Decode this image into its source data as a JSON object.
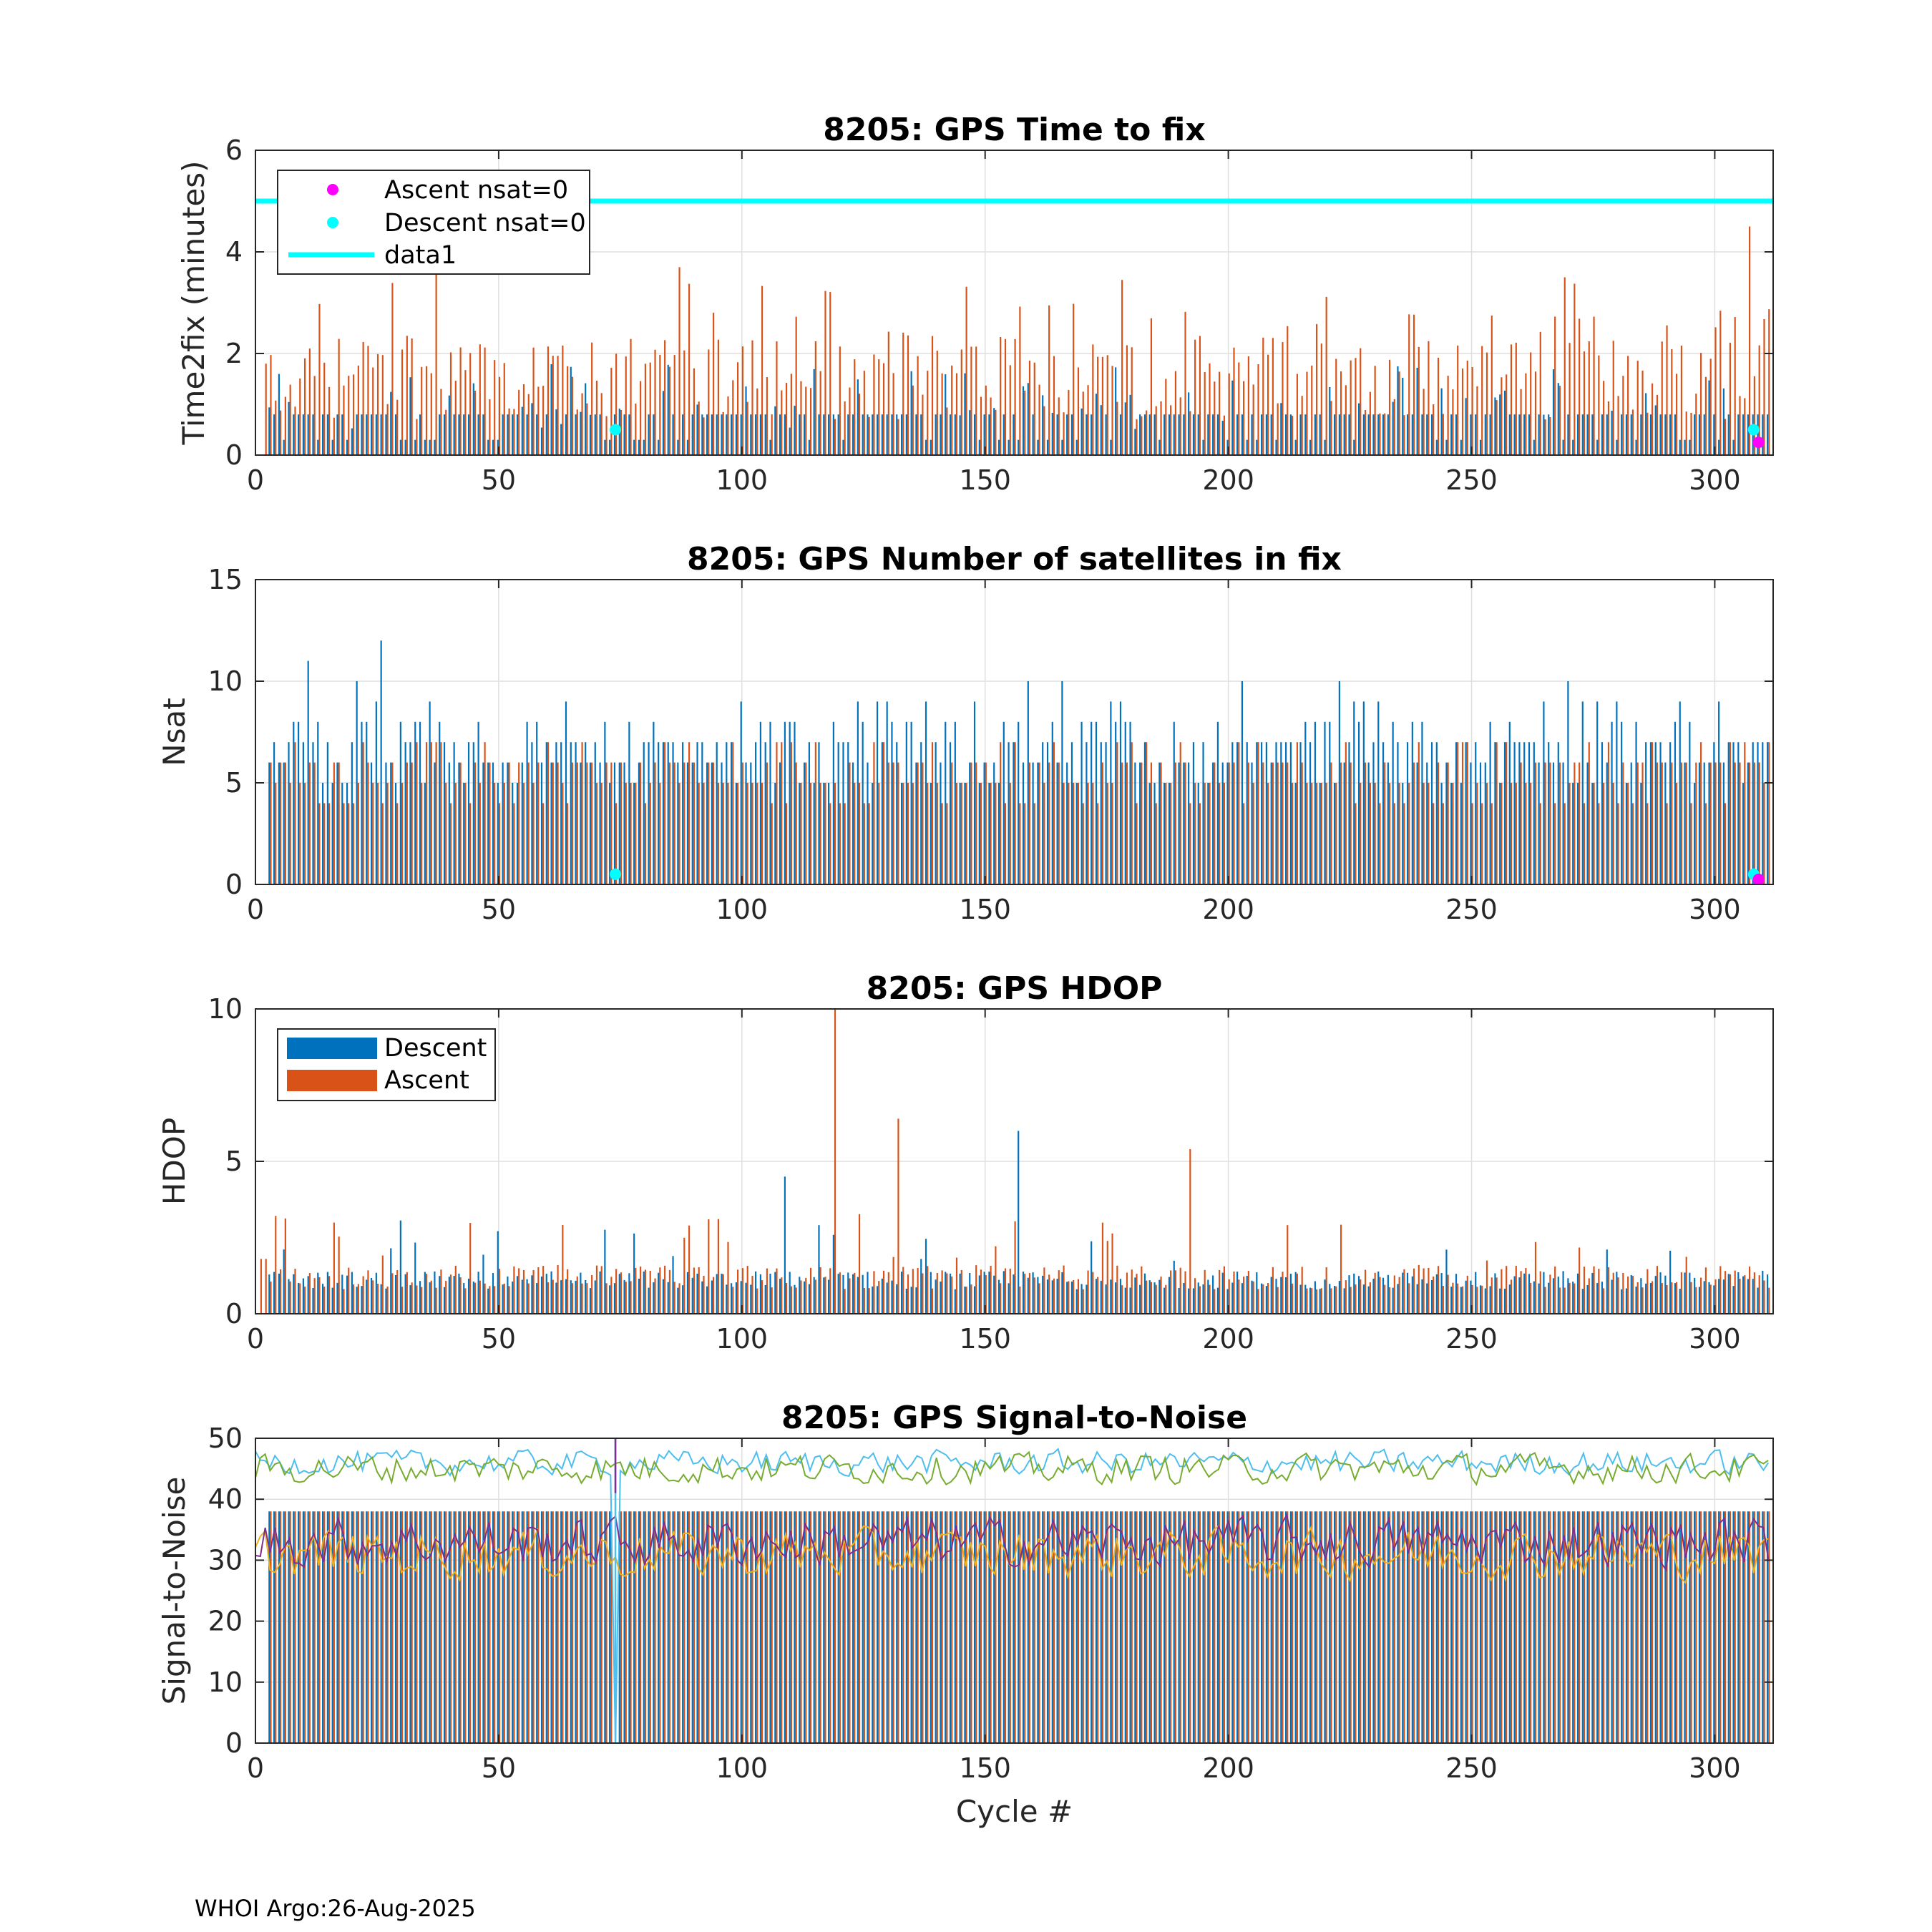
{
  "footer": "WHOI Argo:26-Aug-2025",
  "colors": {
    "descent": "#0072BD",
    "ascent": "#D95319",
    "cyan": "#00FFFF",
    "magenta": "#FF00FF",
    "yellow": "#EDB120",
    "purple": "#7E2F8E",
    "green": "#77AC30",
    "lightblue": "#4DBEEE"
  },
  "chart_data": [
    {
      "type": "bar",
      "title": "8205: GPS Time to fix",
      "xlabel": "",
      "ylabel": "Time2fix (minutes)",
      "xlim": [
        0,
        312
      ],
      "ylim": [
        0,
        6
      ],
      "xticks": [
        0,
        50,
        100,
        150,
        200,
        250,
        300
      ],
      "yticks": [
        0,
        2,
        4,
        6
      ],
      "grid": true,
      "legend": {
        "placement": "top-left",
        "entries": [
          "Ascent nsat=0",
          "Descent nsat=0",
          "data1"
        ]
      },
      "reference_line": {
        "name": "data1",
        "y": 5
      },
      "markers": [
        {
          "series": "Descent nsat=0",
          "x": 74,
          "y": 0.5
        },
        {
          "series": "Descent nsat=0",
          "x": 308,
          "y": 0.5
        },
        {
          "series": "Ascent nsat=0",
          "x": 309,
          "y": 0.25
        }
      ],
      "series": [
        {
          "name": "Descent",
          "typical": 0.8,
          "range": [
            0.3,
            2.8
          ],
          "cycles": 311
        },
        {
          "name": "Ascent",
          "typical": 1.6,
          "range": [
            0.3,
            4.5
          ],
          "cycles": 311,
          "notable": [
            {
              "x": 37,
              "y": 3.6
            },
            {
              "x": 87,
              "y": 3.7
            },
            {
              "x": 269,
              "y": 3.5
            },
            {
              "x": 307,
              "y": 4.5
            }
          ]
        }
      ]
    },
    {
      "type": "bar",
      "title": "8205: GPS Number of satellites in fix",
      "xlabel": "",
      "ylabel": "Nsat",
      "xlim": [
        0,
        312
      ],
      "ylim": [
        0,
        15
      ],
      "xticks": [
        0,
        50,
        100,
        150,
        200,
        250,
        300
      ],
      "yticks": [
        0,
        5,
        10,
        15
      ],
      "grid": true,
      "markers": [
        {
          "series": "Descent nsat=0",
          "x": 74,
          "y": 0.5
        },
        {
          "series": "Descent nsat=0",
          "x": 308,
          "y": 0.5
        },
        {
          "series": "Ascent nsat=0",
          "x": 309,
          "y": 0.25
        }
      ],
      "series": [
        {
          "name": "Descent",
          "typical": 7,
          "range": [
            5,
            12
          ],
          "cycles": 311,
          "notable": [
            {
              "x": 11,
              "y": 11
            },
            {
              "x": 26,
              "y": 12
            }
          ]
        },
        {
          "name": "Ascent",
          "typical": 6,
          "range": [
            4,
            10
          ],
          "cycles": 311
        }
      ]
    },
    {
      "type": "bar",
      "title": "8205: GPS HDOP",
      "xlabel": "",
      "ylabel": "HDOP",
      "xlim": [
        0,
        312
      ],
      "ylim": [
        0,
        10
      ],
      "xticks": [
        0,
        50,
        100,
        150,
        200,
        250,
        300
      ],
      "yticks": [
        0,
        5,
        10
      ],
      "grid": true,
      "legend": {
        "placement": "top-left",
        "entries": [
          "Descent",
          "Ascent"
        ]
      },
      "series": [
        {
          "name": "Descent",
          "typical": 1.0,
          "range": [
            0.7,
            6.0
          ],
          "cycles": 311,
          "notable": [
            {
              "x": 109,
              "y": 4.5
            },
            {
              "x": 157,
              "y": 6.0
            }
          ]
        },
        {
          "name": "Ascent",
          "typical": 1.2,
          "range": [
            0.7,
            10
          ],
          "cycles": 311,
          "notable": [
            {
              "x": 119,
              "y": 10
            },
            {
              "x": 132,
              "y": 6.4
            },
            {
              "x": 192,
              "y": 5.4
            }
          ]
        }
      ]
    },
    {
      "type": "bar",
      "title": "8205: GPS Signal-to-Noise",
      "xlabel": "Cycle #",
      "ylabel": "Signal-to-Noise",
      "xlim": [
        0,
        312
      ],
      "ylim": [
        0,
        50
      ],
      "xticks": [
        0,
        50,
        100,
        150,
        200,
        250,
        300
      ],
      "yticks": [
        0,
        10,
        20,
        30,
        40,
        50
      ],
      "grid": true,
      "series": [
        {
          "name": "Descent bars",
          "typical": 38,
          "cycles": 311
        },
        {
          "name": "Ascent bars",
          "typical": 38,
          "cycles": 311
        },
        {
          "name": "SNR max (light blue)",
          "typical": 46,
          "range": [
            42,
            50
          ]
        },
        {
          "name": "SNR max (green)",
          "typical": 45,
          "range": [
            40,
            50
          ]
        },
        {
          "name": "SNR mean (purple)",
          "typical": 33,
          "range": [
            22,
            42
          ]
        },
        {
          "name": "SNR mean (yellow)",
          "typical": 31,
          "range": [
            18,
            40
          ]
        }
      ],
      "notable": [
        {
          "x": 74,
          "y": 0,
          "note": "dropout to zero"
        }
      ]
    }
  ]
}
